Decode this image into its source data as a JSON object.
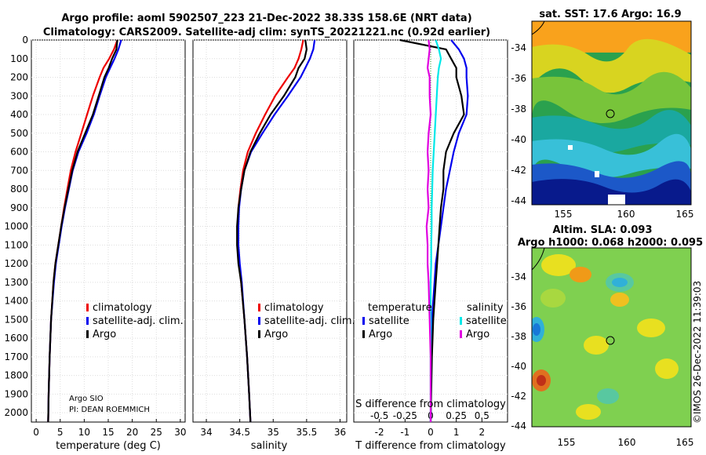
{
  "header": {
    "title_line1": "Argo profile: aoml 5902507_223 21-Dec-2022 38.33S 158.6E (NRT data)",
    "title_line2": "Climatology: CARS2009. Satellite-adj clim: synTS_20221221.nc (0.92d earlier)"
  },
  "colors": {
    "climatology": "#ee0000",
    "satellite": "#0000ee",
    "argo": "#000000",
    "sal_satellite": "#00e8e8",
    "sal_argo": "#e000e0"
  },
  "chart_data": [
    {
      "type": "line",
      "panel": "temperature",
      "xlabel": "temperature (deg C)",
      "xlim": [
        -1,
        31
      ],
      "xticks": [
        0,
        5,
        10,
        15,
        20,
        25,
        30
      ],
      "ylim": [
        0,
        2050
      ],
      "yticks": [
        0,
        100,
        200,
        300,
        400,
        500,
        600,
        700,
        800,
        900,
        1000,
        1100,
        1200,
        1300,
        1400,
        1500,
        1600,
        1700,
        1800,
        1900,
        2000
      ],
      "depth": [
        0,
        50,
        100,
        150,
        200,
        300,
        400,
        500,
        600,
        700,
        800,
        900,
        1000,
        1100,
        1200,
        1300,
        1500,
        1700,
        1900,
        2050
      ],
      "series": [
        {
          "name": "climatology",
          "values": [
            16.9,
            16.2,
            15.2,
            14.0,
            13.2,
            11.8,
            10.6,
            9.4,
            8.2,
            7.2,
            6.5,
            5.8,
            5.2,
            4.6,
            4.0,
            3.6,
            3.1,
            2.8,
            2.6,
            2.5
          ]
        },
        {
          "name": "satellite-adj. clim.",
          "values": [
            17.7,
            17.1,
            16.3,
            15.4,
            14.5,
            13.2,
            12.0,
            10.5,
            8.8,
            7.6,
            6.8,
            6.0,
            5.3,
            4.7,
            4.1,
            3.7,
            3.1,
            2.8,
            2.6,
            2.5
          ]
        },
        {
          "name": "Argo",
          "values": [
            16.9,
            16.7,
            15.8,
            15.1,
            14.2,
            13.0,
            11.8,
            10.2,
            8.6,
            7.5,
            6.7,
            5.9,
            5.2,
            4.6,
            4.0,
            3.6,
            3.1,
            2.8,
            2.6,
            2.5
          ]
        }
      ],
      "legend": [
        "climatology",
        "satellite-adj. clim.",
        "Argo"
      ],
      "annotation_line1": "Argo SIO",
      "annotation_line2": "PI: DEAN ROEMMICH"
    },
    {
      "type": "line",
      "panel": "salinity",
      "xlabel": "salinity",
      "xlim": [
        33.8,
        36.1
      ],
      "xticks": [
        34,
        34.5,
        35,
        35.5,
        36
      ],
      "xticklabels": [
        "34",
        "34.5",
        "35",
        "35.5",
        "36"
      ],
      "ylim": [
        0,
        2050
      ],
      "depth": [
        0,
        50,
        100,
        150,
        200,
        300,
        400,
        500,
        600,
        700,
        800,
        900,
        1000,
        1100,
        1200,
        1300,
        1500,
        1700,
        1900,
        2050
      ],
      "series": [
        {
          "name": "climatology",
          "values": [
            35.45,
            35.42,
            35.38,
            35.32,
            35.22,
            35.03,
            34.88,
            34.74,
            34.62,
            34.55,
            34.51,
            34.48,
            34.47,
            34.47,
            34.49,
            34.52,
            34.57,
            34.61,
            34.64,
            34.66
          ]
        },
        {
          "name": "satellite-adj. clim.",
          "values": [
            35.62,
            35.6,
            35.55,
            35.48,
            35.41,
            35.22,
            35.02,
            34.84,
            34.67,
            34.57,
            34.52,
            34.49,
            34.48,
            34.48,
            34.5,
            34.53,
            34.57,
            34.61,
            34.64,
            34.66
          ]
        },
        {
          "name": "Argo",
          "values": [
            35.48,
            35.5,
            35.47,
            35.38,
            35.33,
            35.16,
            34.96,
            34.8,
            34.66,
            34.57,
            34.52,
            34.48,
            34.46,
            34.46,
            34.48,
            34.52,
            34.57,
            34.61,
            34.64,
            34.66
          ]
        }
      ],
      "legend": [
        "climatology",
        "satellite-adj. clim.",
        "Argo"
      ]
    },
    {
      "type": "line",
      "panel": "difference",
      "xlabel": "T difference from climatology",
      "xlabel_top": "S difference from climatology",
      "xlim": [
        -3,
        3
      ],
      "xticks": [
        -2,
        -1,
        0,
        1,
        2
      ],
      "s_ticklabels": [
        "-0.5",
        "-0.25",
        "0",
        "0.25",
        "0.5"
      ],
      "ylim": [
        0,
        2050
      ],
      "depth": [
        0,
        50,
        100,
        150,
        200,
        300,
        400,
        500,
        600,
        700,
        800,
        900,
        1000,
        1100,
        1200,
        1300,
        1500,
        1700,
        1900,
        2050
      ],
      "series": [
        {
          "name": "temperature satellite",
          "values": [
            0.8,
            1.1,
            1.3,
            1.4,
            1.4,
            1.45,
            1.4,
            1.1,
            0.9,
            0.75,
            0.6,
            0.5,
            0.4,
            0.3,
            0.2,
            0.15,
            0.05,
            0.02,
            0.01,
            0
          ]
        },
        {
          "name": "temperature Argo",
          "values": [
            -1.2,
            0.6,
            0.8,
            1.0,
            1.0,
            1.2,
            1.3,
            0.9,
            0.6,
            0.5,
            0.5,
            0.4,
            0.35,
            0.3,
            0.25,
            0.2,
            0.1,
            0.05,
            0.02,
            0
          ]
        },
        {
          "name": "salinity satellite",
          "values": [
            0.05,
            0.08,
            0.1,
            0.08,
            0.07,
            0.06,
            0.05,
            0.04,
            0.03,
            0.02,
            0.015,
            0.01,
            0.01,
            0.005,
            0.005,
            0.0,
            0.0,
            0.0,
            0.0,
            0.0
          ]
        },
        {
          "name": "salinity Argo",
          "values": [
            -0.02,
            -0.01,
            -0.02,
            -0.03,
            -0.01,
            -0.01,
            0.0,
            -0.02,
            -0.03,
            -0.02,
            -0.03,
            -0.02,
            -0.04,
            -0.03,
            -0.03,
            -0.02,
            -0.01,
            0.0,
            0.0,
            0.0
          ]
        }
      ],
      "legend_temp_title": "temperature",
      "legend_sal_title": "salinity",
      "legend_temp": [
        "satellite",
        "Argo"
      ],
      "legend_sal": [
        "satellite",
        "Argo"
      ]
    }
  ],
  "maps": {
    "sst_title": "sat. SST: 17.6 Argo: 16.9",
    "sla_title_line1": "Altim. SLA: 0.093",
    "sla_title_line2": "Argo h1000: 0.068 h2000: 0.095",
    "lat_ticks": [
      "-34",
      "-36",
      "-38",
      "-40",
      "-42",
      "-44"
    ],
    "lon_ticks": [
      "155",
      "160",
      "165"
    ],
    "argo_position": {
      "lon": 158.6,
      "lat": -38.33
    },
    "timestamp": "©IMOS 26-Dec-2022 11:39:03"
  }
}
